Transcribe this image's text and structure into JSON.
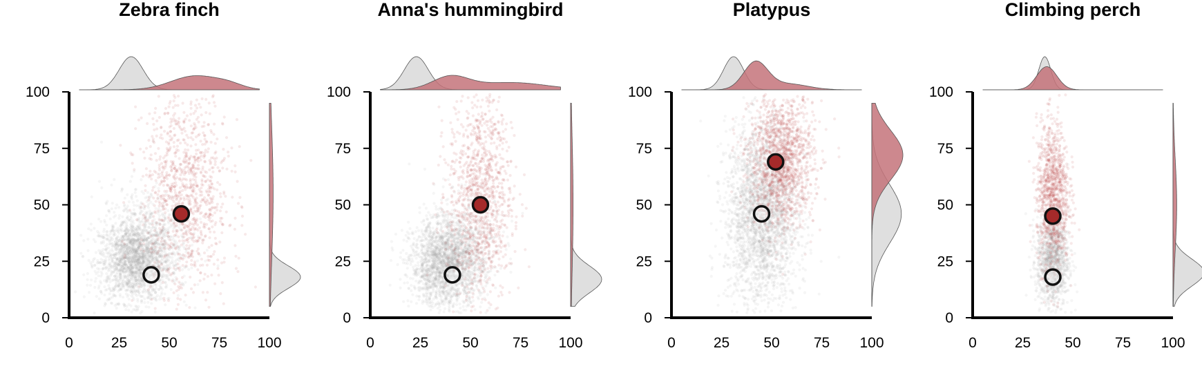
{
  "colors": {
    "red_points": "#b23a3a",
    "red_fill": "#c4737a",
    "gray_points": "#a0a0a0",
    "gray_fill": "#d9d9d9",
    "red_marker": "#a52a2a",
    "axis": "#000000"
  },
  "chart_data": [
    {
      "type": "scatter",
      "title": "Zebra finch",
      "xlim": [
        0,
        100
      ],
      "ylim": [
        0,
        100
      ],
      "xticks": [
        0,
        25,
        50,
        75,
        100
      ],
      "yticks": [
        0,
        25,
        50,
        75,
        100
      ],
      "gray_cloud": [
        {
          "cx": 33,
          "cy": 25,
          "sx": 9,
          "sy": 9,
          "n": 1800
        },
        {
          "cx": 38,
          "cy": 35,
          "sx": 11,
          "sy": 12,
          "n": 600
        }
      ],
      "red_cloud": [
        {
          "cx": 58,
          "cy": 55,
          "sx": 11,
          "sy": 24,
          "n": 1100
        }
      ],
      "gray_marker": {
        "x": 41,
        "y": 19
      },
      "red_marker": {
        "x": 56,
        "y": 46
      },
      "top_density": {
        "gray": [
          {
            "mu": 31,
            "s": 6,
            "w": 1.0
          }
        ],
        "red": [
          {
            "mu": 63,
            "s": 12,
            "w": 0.42
          },
          {
            "mu": 80,
            "s": 7,
            "w": 0.12
          }
        ]
      },
      "right_density": {
        "gray": [
          {
            "mu": 18,
            "s": 5,
            "w": 1.0
          }
        ],
        "red": [
          {
            "mu": 55,
            "s": 30,
            "w": 0.12
          }
        ]
      }
    },
    {
      "type": "scatter",
      "title": "Anna's hummingbird",
      "xlim": [
        0,
        100
      ],
      "ylim": [
        0,
        100
      ],
      "xticks": [
        0,
        25,
        50,
        75,
        100
      ],
      "yticks": [
        0,
        25,
        50,
        75,
        100
      ],
      "gray_cloud": [
        {
          "cx": 38,
          "cy": 23,
          "sx": 9,
          "sy": 9,
          "n": 1800
        },
        {
          "cx": 43,
          "cy": 33,
          "sx": 10,
          "sy": 11,
          "n": 600
        }
      ],
      "red_cloud": [
        {
          "cx": 55,
          "cy": 55,
          "sx": 8,
          "sy": 24,
          "n": 1100
        }
      ],
      "gray_marker": {
        "x": 41,
        "y": 19
      },
      "red_marker": {
        "x": 55,
        "y": 50
      },
      "top_density": {
        "gray": [
          {
            "mu": 23,
            "s": 6,
            "w": 1.0
          }
        ],
        "red": [
          {
            "mu": 40,
            "s": 9,
            "w": 0.38
          },
          {
            "mu": 70,
            "s": 18,
            "w": 0.22
          }
        ]
      },
      "right_density": {
        "gray": [
          {
            "mu": 17,
            "s": 6,
            "w": 1.0
          }
        ],
        "red": [
          {
            "mu": 50,
            "s": 30,
            "w": 0.08
          }
        ]
      }
    },
    {
      "type": "scatter",
      "title": "Platypus",
      "xlim": [
        0,
        100
      ],
      "ylim": [
        0,
        100
      ],
      "xticks": [
        0,
        25,
        50,
        75,
        100
      ],
      "yticks": [
        0,
        25,
        50,
        75,
        100
      ],
      "gray_cloud": [
        {
          "cx": 45,
          "cy": 45,
          "sx": 9,
          "sy": 20,
          "n": 2600
        }
      ],
      "red_cloud": [
        {
          "cx": 55,
          "cy": 70,
          "sx": 8,
          "sy": 15,
          "n": 1500
        }
      ],
      "gray_marker": {
        "x": 45,
        "y": 46
      },
      "red_marker": {
        "x": 52,
        "y": 69
      },
      "top_density": {
        "gray": [
          {
            "mu": 31,
            "s": 5,
            "w": 1.0
          }
        ],
        "red": [
          {
            "mu": 42,
            "s": 6,
            "w": 0.82
          },
          {
            "mu": 58,
            "s": 10,
            "w": 0.18
          }
        ]
      },
      "right_density": {
        "gray": [
          {
            "mu": 46,
            "s": 13,
            "w": 0.95
          }
        ],
        "red": [
          {
            "mu": 72,
            "s": 11,
            "w": 1.0
          }
        ]
      }
    },
    {
      "type": "scatter",
      "title": "Climbing perch",
      "xlim": [
        0,
        100
      ],
      "ylim": [
        0,
        100
      ],
      "xticks": [
        0,
        25,
        50,
        75,
        100
      ],
      "yticks": [
        0,
        25,
        50,
        75,
        100
      ],
      "gray_cloud": [
        {
          "cx": 40,
          "cy": 25,
          "sx": 4,
          "sy": 10,
          "n": 1200
        }
      ],
      "red_cloud": [
        {
          "cx": 40,
          "cy": 55,
          "sx": 4,
          "sy": 16,
          "n": 1100
        }
      ],
      "gray_marker": {
        "x": 40,
        "y": 18
      },
      "red_marker": {
        "x": 40,
        "y": 45
      },
      "top_density": {
        "gray": [
          {
            "mu": 36,
            "s": 3,
            "w": 1.0
          }
        ],
        "red": [
          {
            "mu": 37,
            "s": 5,
            "w": 0.7
          }
        ]
      },
      "right_density": {
        "gray": [
          {
            "mu": 20,
            "s": 6,
            "w": 1.0
          }
        ],
        "red": [
          {
            "mu": 50,
            "s": 20,
            "w": 0.12
          }
        ]
      }
    }
  ]
}
